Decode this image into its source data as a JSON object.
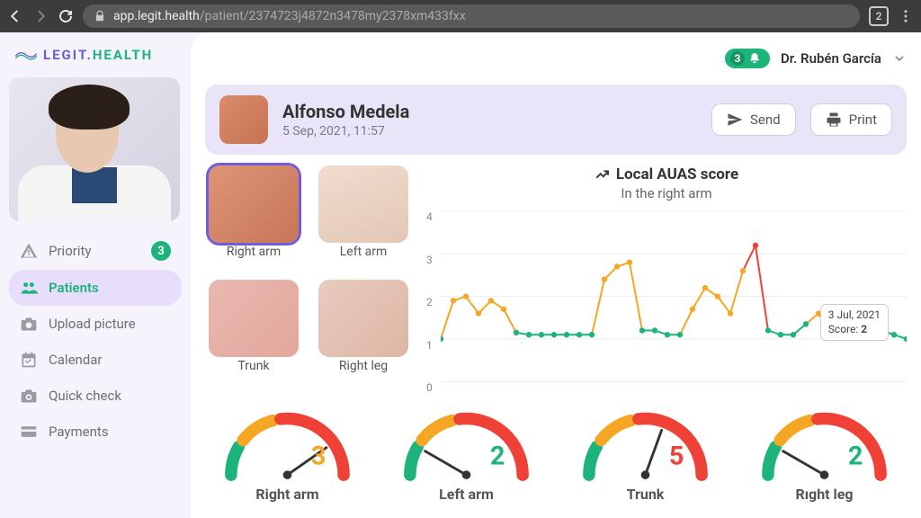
{
  "browser": {
    "tab_count": "2",
    "url_host": "app.legit.health",
    "url_path": "/patient/2374723j4872n3478my2378xm433fxx"
  },
  "brand": {
    "part1": "LEGIT.",
    "part2": "HEALTH"
  },
  "sidebar": {
    "items": [
      {
        "icon": "warning-icon",
        "label": "Priority",
        "badge": "3"
      },
      {
        "icon": "patients-icon",
        "label": "Patients",
        "active": true
      },
      {
        "icon": "camera-icon",
        "label": "Upload picture"
      },
      {
        "icon": "calendar-icon",
        "label": "Calendar"
      },
      {
        "icon": "eye-icon",
        "label": "Quick check"
      },
      {
        "icon": "payments-icon",
        "label": "Payments"
      }
    ]
  },
  "top": {
    "notif_count": "3",
    "user": "Dr. Rubén García"
  },
  "patient": {
    "name": "Alfonso Medela",
    "datetime": "5 Sep, 2021, 11:57",
    "send": "Send",
    "print": "Print"
  },
  "thumbs": [
    {
      "label": "Right arm",
      "class": "t-rightarm",
      "selected": true
    },
    {
      "label": "Left arm",
      "class": "t-leftarm"
    },
    {
      "label": "Trunk",
      "class": "t-trunk"
    },
    {
      "label": "Right leg",
      "class": "t-rightleg"
    }
  ],
  "chart": {
    "title": "Local AUAS score",
    "subtitle": "In the right arm",
    "ylim": [
      0,
      4
    ],
    "ytick_step": 1,
    "yticks": [
      "0",
      "1",
      "2",
      "3",
      "4"
    ],
    "grid_color": "#eeeeee",
    "series_color_low": "#1db47c",
    "series_color_mid": "#f5a623",
    "series_color_high": "#ef4136",
    "marker_radius": 3.2,
    "line_width": 2,
    "values": [
      1.0,
      1.9,
      2.0,
      1.6,
      1.9,
      1.7,
      1.15,
      1.1,
      1.1,
      1.1,
      1.1,
      1.1,
      1.1,
      2.4,
      2.7,
      2.8,
      1.2,
      1.2,
      1.1,
      1.1,
      1.7,
      2.2,
      2.0,
      1.6,
      2.6,
      3.2,
      1.2,
      1.1,
      1.1,
      1.35,
      1.6,
      1.1,
      1.3,
      1.2,
      1.1,
      1.2,
      1.1,
      1.0
    ],
    "tooltip_line1": "3 Jul, 2021",
    "tooltip_line2a": "Score: ",
    "tooltip_line2b": "2"
  },
  "gauges": [
    {
      "label": "Right arm",
      "value": "3",
      "color": "orange",
      "needle_deg": 55
    },
    {
      "label": "Left arm",
      "value": "2",
      "color": "green",
      "needle_deg": -60
    },
    {
      "label": "Trunk",
      "value": "5",
      "color": "red",
      "needle_deg": 20
    },
    {
      "label": "Rıght leg",
      "value": "2",
      "color": "green",
      "needle_deg": -60
    }
  ],
  "colors": {
    "green": "#1db47c",
    "orange": "#f5a623",
    "red": "#ef4136",
    "purple": "#735bdd"
  }
}
